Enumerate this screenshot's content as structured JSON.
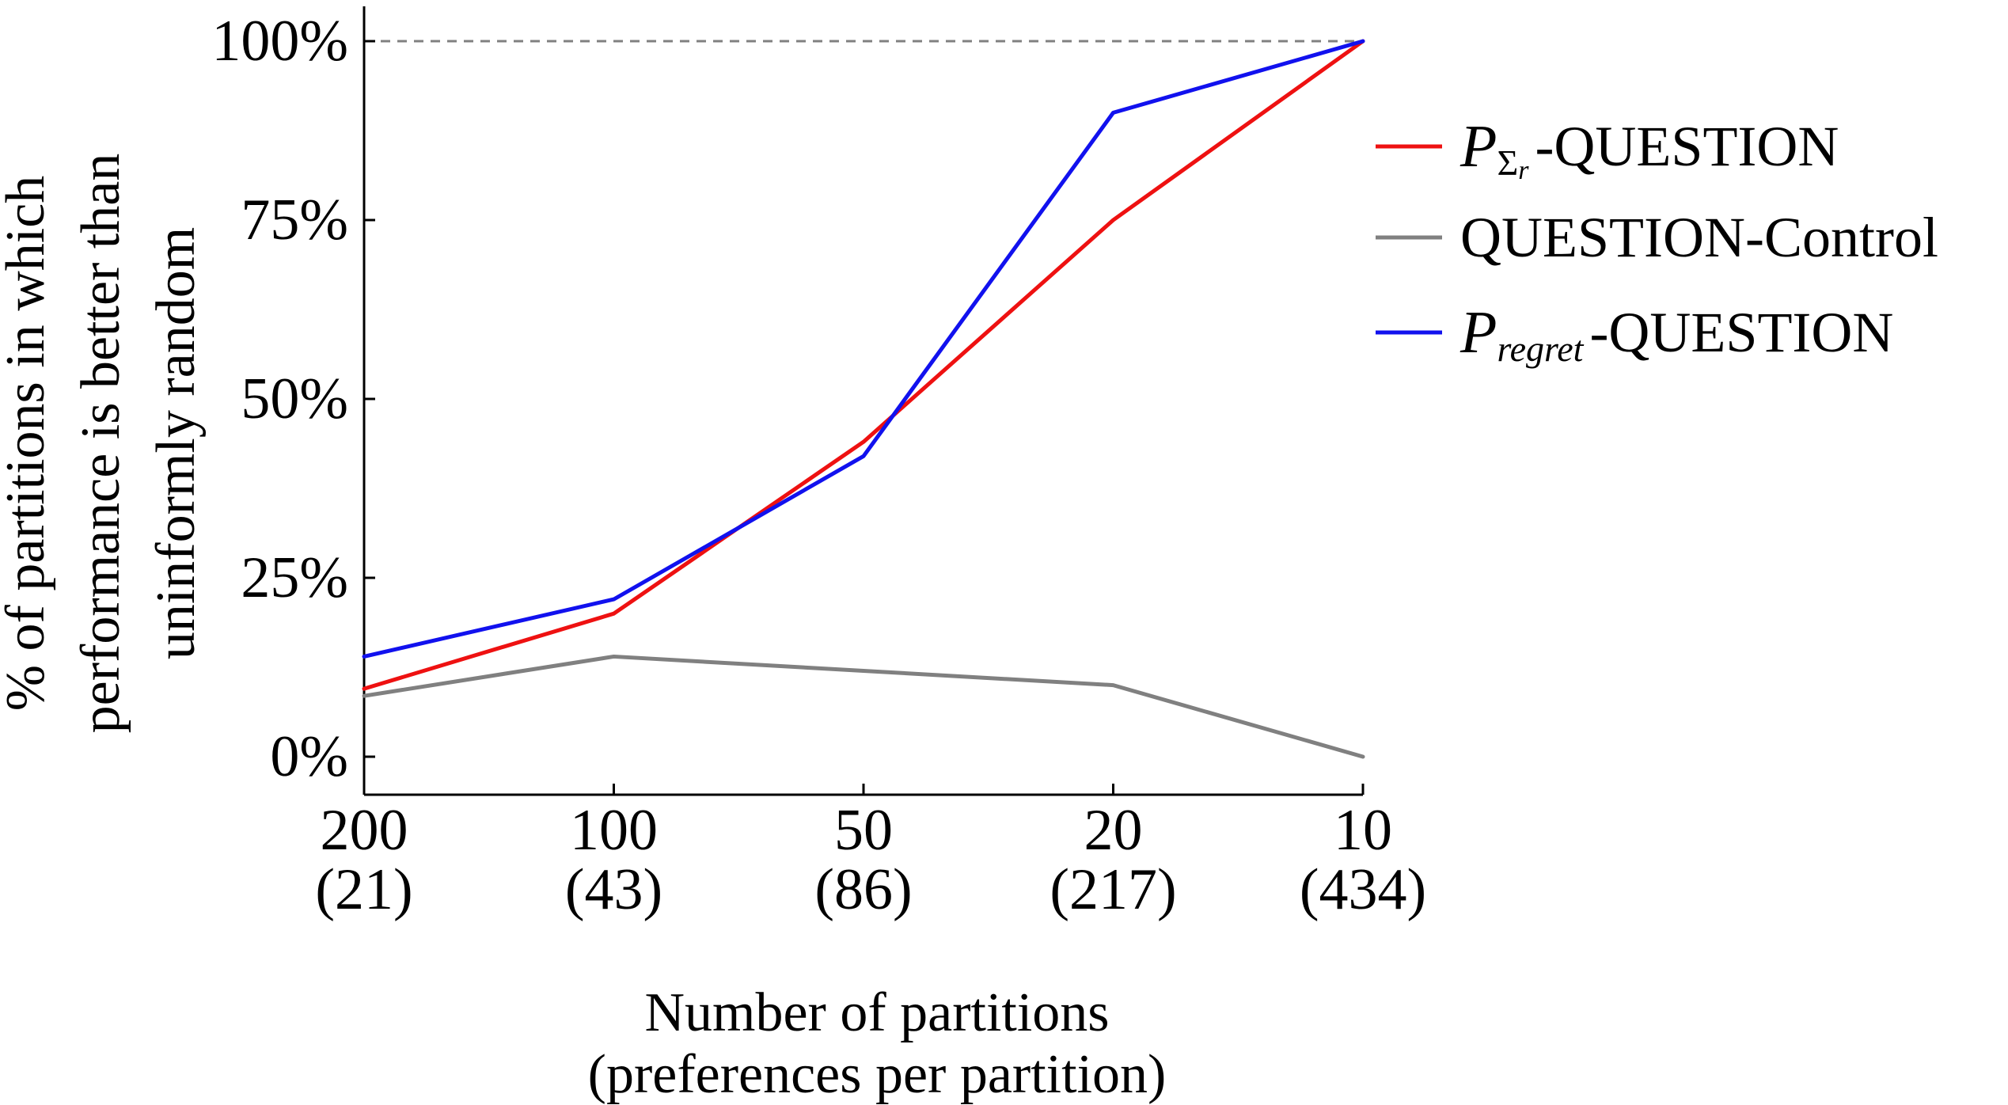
{
  "chart_data": {
    "type": "line",
    "title": "",
    "xlabel_lines": [
      "Number of partitions",
      "(preferences per partition)"
    ],
    "ylabel_lines": [
      "% of partitions in which",
      "performance is better than",
      "uninformly random"
    ],
    "categories": [
      {
        "main": "200",
        "sub": "(21)"
      },
      {
        "main": "100",
        "sub": "(43)"
      },
      {
        "main": "50",
        "sub": "(86)"
      },
      {
        "main": "20",
        "sub": "(217)"
      },
      {
        "main": "10",
        "sub": "(434)"
      }
    ],
    "yticks": [
      {
        "value": 0,
        "label": "0%"
      },
      {
        "value": 25,
        "label": "25%"
      },
      {
        "value": 50,
        "label": "50%"
      },
      {
        "value": 75,
        "label": "75%"
      },
      {
        "value": 100,
        "label": "100%"
      }
    ],
    "ylim": [
      -5,
      105
    ],
    "reference_line": {
      "value": 100,
      "style": "dashed",
      "color": "#808080"
    },
    "legend_position": "right",
    "series": [
      {
        "id": "sigma",
        "name_base": "P",
        "name_subscript": "Σ",
        "name_subsubscript": "r",
        "name_suffix": "-QUESTION",
        "color": "#ee1111",
        "values": [
          9.5,
          20,
          44,
          75,
          100
        ]
      },
      {
        "id": "control",
        "name_base": "",
        "name_subscript": "",
        "name_subsubscript": "",
        "name_suffix": "QUESTION-Control",
        "color": "#808080",
        "values": [
          8.5,
          14,
          12,
          10,
          0
        ]
      },
      {
        "id": "regret",
        "name_base": "P",
        "name_subscript": "regret",
        "name_subsubscript": "",
        "name_suffix": "-QUESTION",
        "color": "#1111ee",
        "values": [
          14,
          22,
          42,
          90,
          100
        ]
      }
    ]
  }
}
